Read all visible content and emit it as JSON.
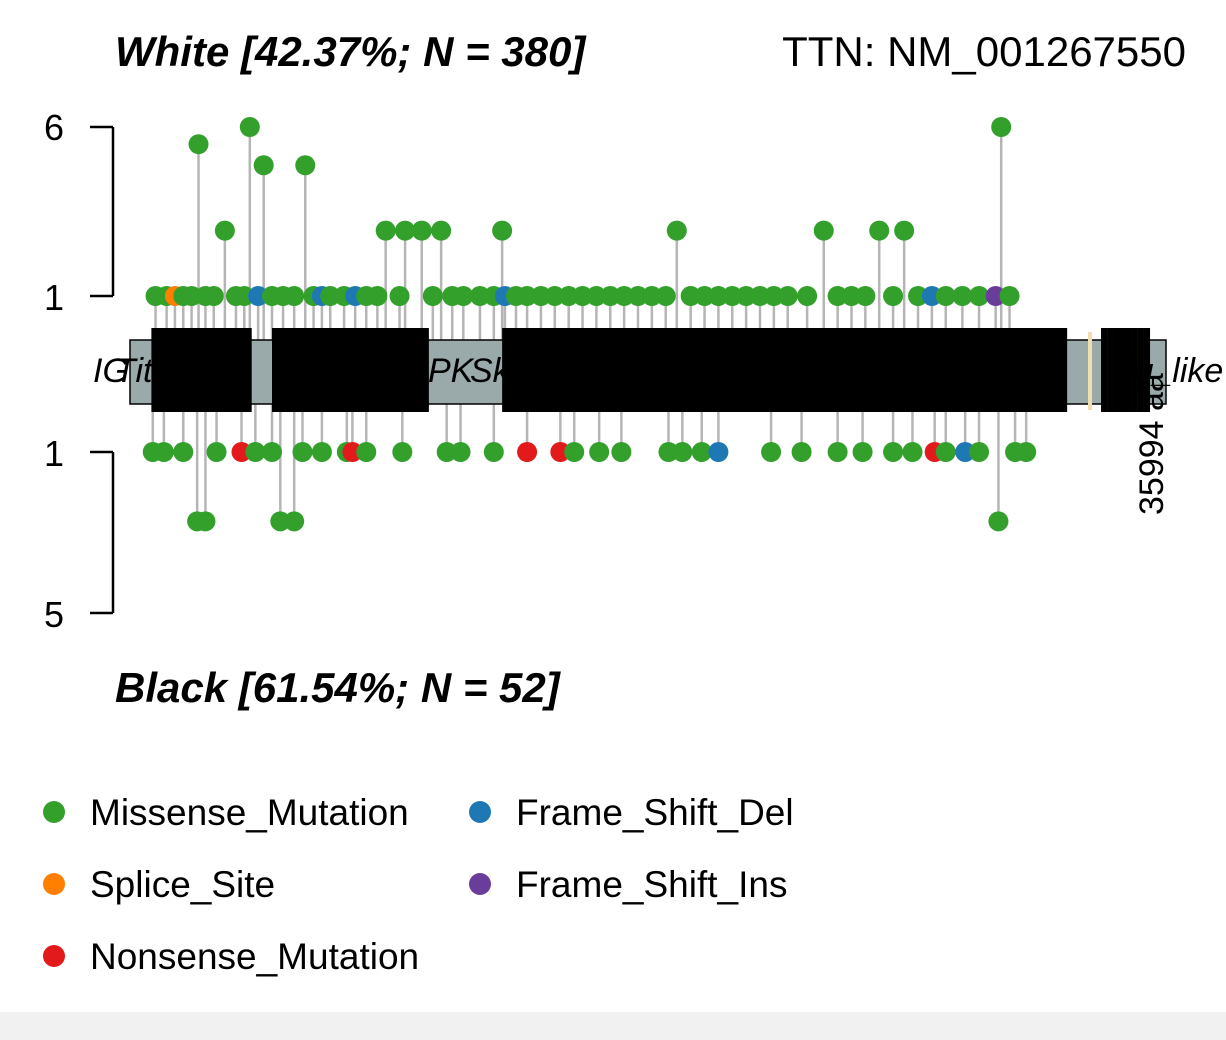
{
  "chart_data": {
    "type": "lollipop",
    "gene_title": "TTN: NM_001267550",
    "top_group_label": "White [42.37%; N = 380]",
    "bottom_group_label": "Black [61.54%; N = 52]",
    "protein_length_label": "35994 aa",
    "protein_length": 35994,
    "top_axis": {
      "ticks": [
        "1",
        "6"
      ]
    },
    "bottom_axis": {
      "ticks": [
        "1",
        "5"
      ]
    },
    "domain_labels": [
      "IG",
      "Titin",
      "Ig",
      "PK",
      "Sk",
      "Ig_like"
    ],
    "colors": {
      "Missense_Mutation": "#33a02c",
      "Splice_Site": "#ff7f00",
      "Nonsense_Mutation": "#e31a1c",
      "Frame_Shift_Del": "#1f78b4",
      "Frame_Shift_Ins": "#6a3d9a",
      "protein_bar": "#9aaaaa",
      "domain_block": "#000000",
      "stem": "#b5b5b5"
    },
    "legend": [
      {
        "label": "Missense_Mutation",
        "class": "Missense_Mutation"
      },
      {
        "label": "Frame_Shift_Del",
        "class": "Frame_Shift_Del"
      },
      {
        "label": "Splice_Site",
        "class": "Splice_Site"
      },
      {
        "label": "Frame_Shift_Ins",
        "class": "Frame_Shift_Ins"
      },
      {
        "label": "Nonsense_Mutation",
        "class": "Nonsense_Mutation"
      }
    ],
    "top_mutations": [
      {
        "pos": 200,
        "count": 1,
        "class": "Missense_Mutation"
      },
      {
        "pos": 600,
        "count": 1,
        "class": "Missense_Mutation"
      },
      {
        "pos": 900,
        "count": 1,
        "class": "Splice_Site"
      },
      {
        "pos": 1200,
        "count": 1,
        "class": "Missense_Mutation"
      },
      {
        "pos": 1500,
        "count": 1,
        "class": "Missense_Mutation"
      },
      {
        "pos": 1750,
        "count": 5,
        "class": "Missense_Mutation"
      },
      {
        "pos": 2000,
        "count": 1,
        "class": "Missense_Mutation"
      },
      {
        "pos": 2300,
        "count": 1,
        "class": "Missense_Mutation"
      },
      {
        "pos": 2700,
        "count": 2,
        "class": "Missense_Mutation"
      },
      {
        "pos": 3100,
        "count": 1,
        "class": "Missense_Mutation"
      },
      {
        "pos": 3400,
        "count": 1,
        "class": "Missense_Mutation"
      },
      {
        "pos": 3600,
        "count": 6,
        "class": "Missense_Mutation"
      },
      {
        "pos": 3900,
        "count": 1,
        "class": "Frame_Shift_Del"
      },
      {
        "pos": 4100,
        "count": 4,
        "class": "Missense_Mutation"
      },
      {
        "pos": 4400,
        "count": 1,
        "class": "Missense_Mutation"
      },
      {
        "pos": 4800,
        "count": 1,
        "class": "Missense_Mutation"
      },
      {
        "pos": 5200,
        "count": 1,
        "class": "Missense_Mutation"
      },
      {
        "pos": 5600,
        "count": 4,
        "class": "Missense_Mutation"
      },
      {
        "pos": 5900,
        "count": 1,
        "class": "Missense_Mutation"
      },
      {
        "pos": 6200,
        "count": 1,
        "class": "Frame_Shift_Del"
      },
      {
        "pos": 6500,
        "count": 1,
        "class": "Missense_Mutation"
      },
      {
        "pos": 7000,
        "count": 1,
        "class": "Missense_Mutation"
      },
      {
        "pos": 7400,
        "count": 1,
        "class": "Frame_Shift_Del"
      },
      {
        "pos": 7800,
        "count": 1,
        "class": "Missense_Mutation"
      },
      {
        "pos": 8200,
        "count": 1,
        "class": "Missense_Mutation"
      },
      {
        "pos": 8500,
        "count": 2,
        "class": "Missense_Mutation"
      },
      {
        "pos": 9000,
        "count": 1,
        "class": "Missense_Mutation"
      },
      {
        "pos": 9200,
        "count": 2,
        "class": "Missense_Mutation"
      },
      {
        "pos": 9800,
        "count": 2,
        "class": "Missense_Mutation"
      },
      {
        "pos": 10200,
        "count": 1,
        "class": "Missense_Mutation"
      },
      {
        "pos": 10500,
        "count": 2,
        "class": "Missense_Mutation"
      },
      {
        "pos": 10900,
        "count": 1,
        "class": "Missense_Mutation"
      },
      {
        "pos": 11300,
        "count": 1,
        "class": "Missense_Mutation"
      },
      {
        "pos": 11900,
        "count": 1,
        "class": "Missense_Mutation"
      },
      {
        "pos": 12400,
        "count": 1,
        "class": "Missense_Mutation"
      },
      {
        "pos": 12700,
        "count": 2,
        "class": "Missense_Mutation"
      },
      {
        "pos": 12800,
        "count": 1,
        "class": "Frame_Shift_Del"
      },
      {
        "pos": 13200,
        "count": 1,
        "class": "Missense_Mutation"
      },
      {
        "pos": 13600,
        "count": 1,
        "class": "Missense_Mutation"
      },
      {
        "pos": 14100,
        "count": 1,
        "class": "Missense_Mutation"
      },
      {
        "pos": 14600,
        "count": 1,
        "class": "Missense_Mutation"
      },
      {
        "pos": 15100,
        "count": 1,
        "class": "Missense_Mutation"
      },
      {
        "pos": 15600,
        "count": 1,
        "class": "Missense_Mutation"
      },
      {
        "pos": 16100,
        "count": 1,
        "class": "Missense_Mutation"
      },
      {
        "pos": 16600,
        "count": 1,
        "class": "Missense_Mutation"
      },
      {
        "pos": 17100,
        "count": 1,
        "class": "Missense_Mutation"
      },
      {
        "pos": 17600,
        "count": 1,
        "class": "Missense_Mutation"
      },
      {
        "pos": 18100,
        "count": 1,
        "class": "Missense_Mutation"
      },
      {
        "pos": 18600,
        "count": 1,
        "class": "Missense_Mutation"
      },
      {
        "pos": 19000,
        "count": 2,
        "class": "Missense_Mutation"
      },
      {
        "pos": 19500,
        "count": 1,
        "class": "Missense_Mutation"
      },
      {
        "pos": 20000,
        "count": 1,
        "class": "Missense_Mutation"
      },
      {
        "pos": 20500,
        "count": 1,
        "class": "Missense_Mutation"
      },
      {
        "pos": 21000,
        "count": 1,
        "class": "Missense_Mutation"
      },
      {
        "pos": 21500,
        "count": 1,
        "class": "Missense_Mutation"
      },
      {
        "pos": 22000,
        "count": 1,
        "class": "Missense_Mutation"
      },
      {
        "pos": 22500,
        "count": 1,
        "class": "Missense_Mutation"
      },
      {
        "pos": 23000,
        "count": 1,
        "class": "Missense_Mutation"
      },
      {
        "pos": 23700,
        "count": 1,
        "class": "Missense_Mutation"
      },
      {
        "pos": 24300,
        "count": 2,
        "class": "Missense_Mutation"
      },
      {
        "pos": 24800,
        "count": 1,
        "class": "Missense_Mutation"
      },
      {
        "pos": 25300,
        "count": 1,
        "class": "Missense_Mutation"
      },
      {
        "pos": 25800,
        "count": 1,
        "class": "Missense_Mutation"
      },
      {
        "pos": 26300,
        "count": 2,
        "class": "Missense_Mutation"
      },
      {
        "pos": 26800,
        "count": 1,
        "class": "Missense_Mutation"
      },
      {
        "pos": 27200,
        "count": 2,
        "class": "Missense_Mutation"
      },
      {
        "pos": 27700,
        "count": 1,
        "class": "Missense_Mutation"
      },
      {
        "pos": 28200,
        "count": 1,
        "class": "Frame_Shift_Del"
      },
      {
        "pos": 28700,
        "count": 1,
        "class": "Missense_Mutation"
      },
      {
        "pos": 29300,
        "count": 1,
        "class": "Missense_Mutation"
      },
      {
        "pos": 29900,
        "count": 1,
        "class": "Missense_Mutation"
      },
      {
        "pos": 30500,
        "count": 1,
        "class": "Frame_Shift_Ins"
      },
      {
        "pos": 30700,
        "count": 6,
        "class": "Missense_Mutation"
      },
      {
        "pos": 31000,
        "count": 1,
        "class": "Missense_Mutation"
      }
    ],
    "bottom_mutations": [
      {
        "pos": 100,
        "count": 1,
        "class": "Missense_Mutation"
      },
      {
        "pos": 500,
        "count": 1,
        "class": "Missense_Mutation"
      },
      {
        "pos": 1200,
        "count": 1,
        "class": "Missense_Mutation"
      },
      {
        "pos": 1700,
        "count": 2,
        "class": "Missense_Mutation"
      },
      {
        "pos": 2000,
        "count": 2,
        "class": "Missense_Mutation"
      },
      {
        "pos": 2400,
        "count": 1,
        "class": "Missense_Mutation"
      },
      {
        "pos": 3300,
        "count": 1,
        "class": "Nonsense_Mutation"
      },
      {
        "pos": 3800,
        "count": 1,
        "class": "Missense_Mutation"
      },
      {
        "pos": 4400,
        "count": 1,
        "class": "Missense_Mutation"
      },
      {
        "pos": 4700,
        "count": 2,
        "class": "Missense_Mutation"
      },
      {
        "pos": 5200,
        "count": 2,
        "class": "Missense_Mutation"
      },
      {
        "pos": 5500,
        "count": 1,
        "class": "Missense_Mutation"
      },
      {
        "pos": 6200,
        "count": 1,
        "class": "Missense_Mutation"
      },
      {
        "pos": 7100,
        "count": 1,
        "class": "Missense_Mutation"
      },
      {
        "pos": 7300,
        "count": 1,
        "class": "Nonsense_Mutation"
      },
      {
        "pos": 7800,
        "count": 1,
        "class": "Missense_Mutation"
      },
      {
        "pos": 9100,
        "count": 1,
        "class": "Missense_Mutation"
      },
      {
        "pos": 10700,
        "count": 1,
        "class": "Missense_Mutation"
      },
      {
        "pos": 11200,
        "count": 1,
        "class": "Missense_Mutation"
      },
      {
        "pos": 12400,
        "count": 1,
        "class": "Missense_Mutation"
      },
      {
        "pos": 13600,
        "count": 1,
        "class": "Nonsense_Mutation"
      },
      {
        "pos": 14800,
        "count": 1,
        "class": "Nonsense_Mutation"
      },
      {
        "pos": 15300,
        "count": 1,
        "class": "Missense_Mutation"
      },
      {
        "pos": 16200,
        "count": 1,
        "class": "Missense_Mutation"
      },
      {
        "pos": 17000,
        "count": 1,
        "class": "Missense_Mutation"
      },
      {
        "pos": 18700,
        "count": 1,
        "class": "Missense_Mutation"
      },
      {
        "pos": 19200,
        "count": 1,
        "class": "Missense_Mutation"
      },
      {
        "pos": 19900,
        "count": 1,
        "class": "Missense_Mutation"
      },
      {
        "pos": 20500,
        "count": 1,
        "class": "Frame_Shift_Del"
      },
      {
        "pos": 22400,
        "count": 1,
        "class": "Missense_Mutation"
      },
      {
        "pos": 23500,
        "count": 1,
        "class": "Missense_Mutation"
      },
      {
        "pos": 24800,
        "count": 1,
        "class": "Missense_Mutation"
      },
      {
        "pos": 25700,
        "count": 1,
        "class": "Missense_Mutation"
      },
      {
        "pos": 26800,
        "count": 1,
        "class": "Missense_Mutation"
      },
      {
        "pos": 27500,
        "count": 1,
        "class": "Missense_Mutation"
      },
      {
        "pos": 28300,
        "count": 1,
        "class": "Nonsense_Mutation"
      },
      {
        "pos": 28700,
        "count": 1,
        "class": "Missense_Mutation"
      },
      {
        "pos": 29400,
        "count": 1,
        "class": "Frame_Shift_Del"
      },
      {
        "pos": 29900,
        "count": 1,
        "class": "Missense_Mutation"
      },
      {
        "pos": 30600,
        "count": 2,
        "class": "Missense_Mutation"
      },
      {
        "pos": 31200,
        "count": 1,
        "class": "Missense_Mutation"
      },
      {
        "pos": 31600,
        "count": 1,
        "class": "Missense_Mutation"
      }
    ]
  }
}
